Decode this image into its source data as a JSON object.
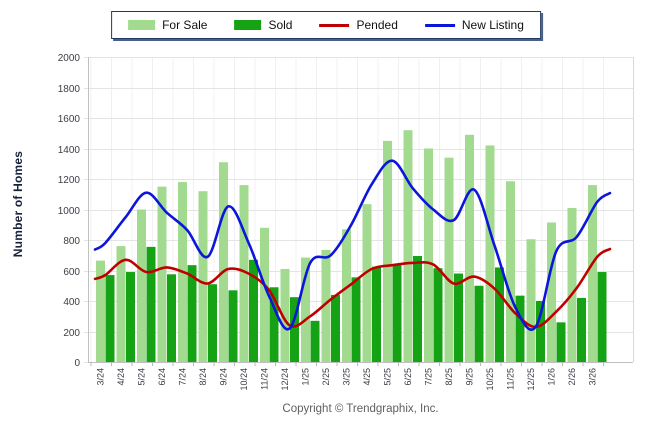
{
  "y_axis": {
    "title": "Number of Homes",
    "min": 0,
    "max": 2000,
    "step": 200
  },
  "footer": {
    "copyright": "Copyright © Trendgraphix, Inc."
  },
  "colors": {
    "for_sale": "#a2db90",
    "sold": "#15a315",
    "pended": "#c00000",
    "new_listing": "#0b16db",
    "grid": "#e4e4e4",
    "grid_vertical": "#f0f0f0",
    "axis": "#c0c0c0",
    "tick_text": "#3c3c46"
  },
  "chart_data": {
    "type": "bar+line",
    "title": "",
    "xlabel": "",
    "ylabel": "Number of Homes",
    "ylim": [
      0,
      2000
    ],
    "grid": "horizontal major, faint vertical group separators",
    "legend_position": "top-center",
    "categories": [
      "3/24",
      "4/24",
      "5/24",
      "6/24",
      "7/24",
      "8/24",
      "9/24",
      "10/24",
      "11/24",
      "12/24",
      "1/25",
      "2/25",
      "3/25",
      "4/25",
      "5/25",
      "6/25",
      "7/25",
      "8/25",
      "9/25",
      "10/25",
      "11/25",
      "12/25",
      "1/26",
      "2/26",
      "3/26"
    ],
    "series": [
      {
        "name": "For Sale",
        "type": "bar",
        "color": "#a2db90",
        "values": [
          665,
          760,
          1000,
          1150,
          1180,
          1120,
          1310,
          1160,
          880,
          610,
          685,
          735,
          870,
          1035,
          1450,
          1520,
          1400,
          1340,
          1490,
          1420,
          1185,
          805,
          915,
          1010,
          1160
        ]
      },
      {
        "name": "Sold",
        "type": "bar",
        "color": "#15a315",
        "values": [
          570,
          590,
          755,
          575,
          635,
          510,
          470,
          670,
          490,
          425,
          270,
          440,
          555,
          625,
          635,
          695,
          615,
          580,
          500,
          620,
          435,
          400,
          260,
          420,
          590
        ]
      },
      {
        "name": "Pended",
        "type": "line",
        "color": "#c00000",
        "values": [
          570,
          670,
          590,
          620,
          580,
          515,
          610,
          580,
          470,
          240,
          300,
          410,
          510,
          610,
          635,
          650,
          640,
          515,
          560,
          480,
          320,
          230,
          330,
          485,
          690
        ]
      },
      {
        "name": "New Listing",
        "type": "line",
        "color": "#0b16db",
        "values": [
          780,
          950,
          1110,
          980,
          865,
          690,
          1020,
          780,
          430,
          220,
          650,
          700,
          900,
          1165,
          1320,
          1140,
          1000,
          930,
          1130,
          760,
          360,
          230,
          725,
          820,
          1050
        ]
      }
    ]
  }
}
